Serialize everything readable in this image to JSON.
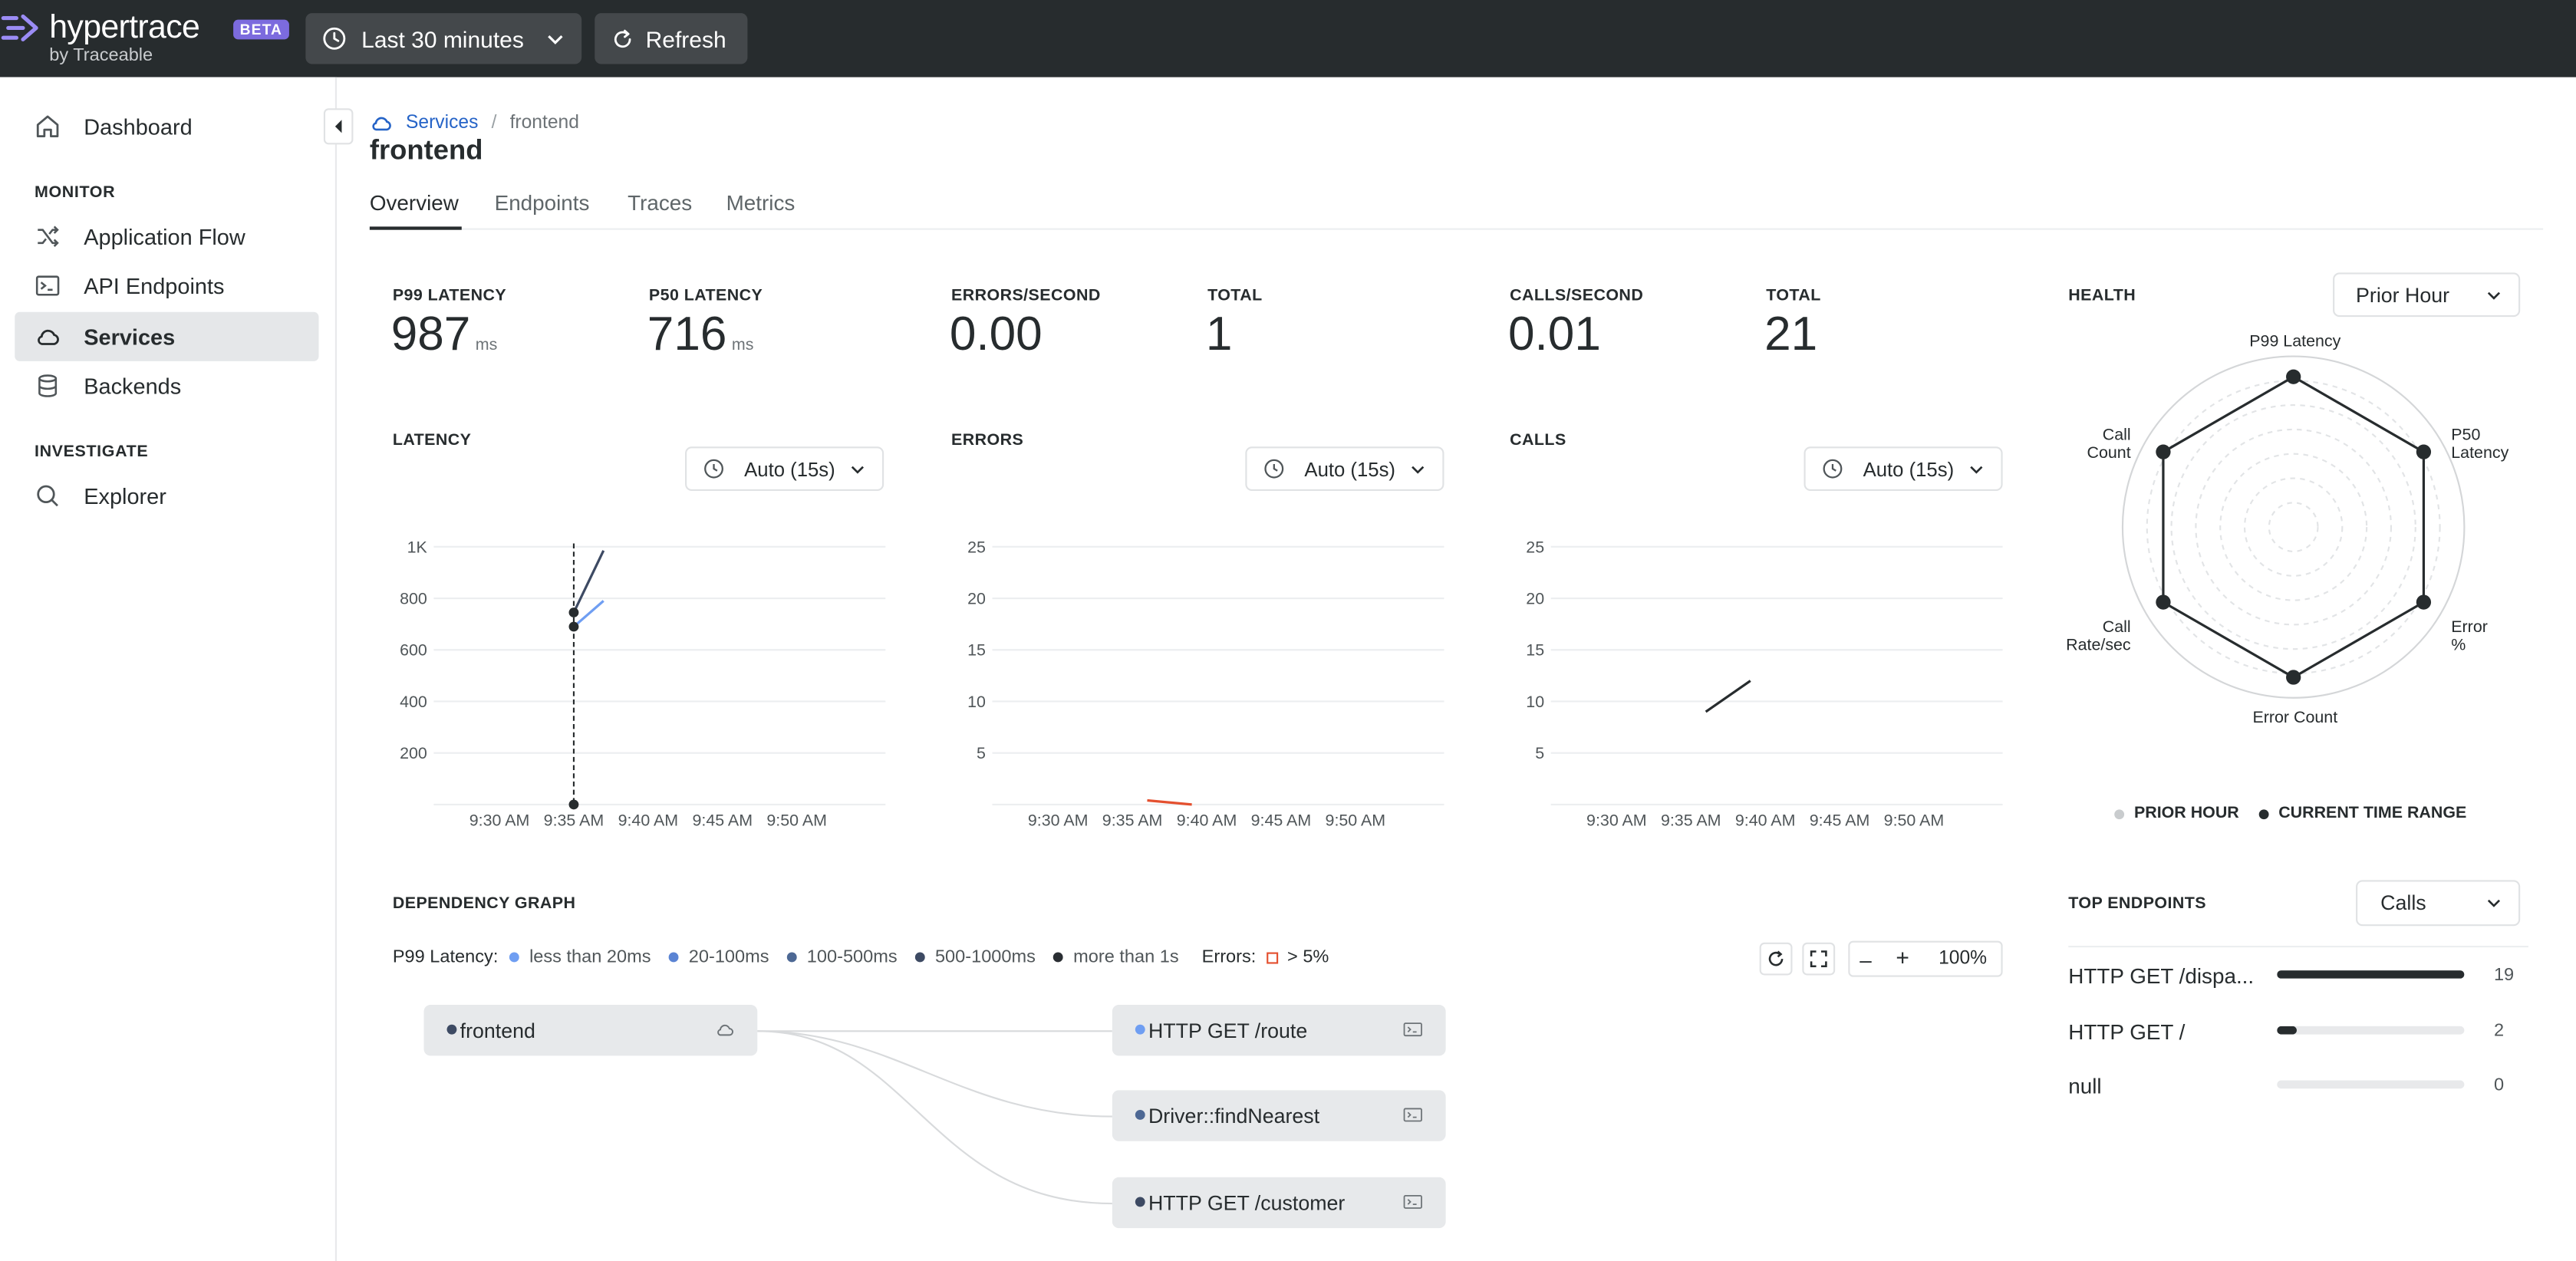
{
  "header": {
    "logo_text": "hypertrace",
    "logo_badge": "BETA",
    "logo_sub": "by Traceable",
    "time_range": "Last 30 minutes",
    "refresh": "Refresh"
  },
  "sidebar": {
    "dashboard": "Dashboard",
    "monitor_title": "MONITOR",
    "monitor_items": [
      "Application Flow",
      "API Endpoints",
      "Services",
      "Backends"
    ],
    "investigate_title": "INVESTIGATE",
    "investigate_items": [
      "Explorer"
    ],
    "active": "Services"
  },
  "breadcrumb": {
    "parent": "Services",
    "separator": "/",
    "current": "frontend"
  },
  "page_title": "frontend",
  "tabs": [
    "Overview",
    "Endpoints",
    "Traces",
    "Metrics"
  ],
  "latency": {
    "p99_label": "P99 LATENCY",
    "p99_value": "987",
    "p99_unit": "ms",
    "p50_label": "P50 LATENCY",
    "p50_value": "716",
    "p50_unit": "ms",
    "chart_title": "LATENCY",
    "interval": "Auto (15s)"
  },
  "errors": {
    "rate_label": "ERRORS/SECOND",
    "rate_value": "0.00",
    "total_label": "TOTAL",
    "total_value": "1",
    "chart_title": "ERRORS",
    "interval": "Auto (15s)"
  },
  "calls": {
    "rate_label": "CALLS/SECOND",
    "rate_value": "0.01",
    "total_label": "TOTAL",
    "total_value": "21",
    "chart_title": "CALLS",
    "interval": "Auto (15s)"
  },
  "health": {
    "title": "HEALTH",
    "compare": "Prior Hour",
    "axes": [
      "P99 Latency",
      "P50 Latency",
      "Error %",
      "Error Count",
      "Call Rate/sec",
      "Call Count"
    ],
    "legend_prior": "PRIOR HOUR",
    "legend_current": "CURRENT TIME RANGE"
  },
  "dependency_graph": {
    "title": "DEPENDENCY GRAPH",
    "legend_prefix": "P99 Latency:",
    "legend": [
      "less than 20ms",
      "20-100ms",
      "100-500ms",
      "500-1000ms",
      "more than 1s"
    ],
    "legend_colors": [
      "#6f9ef2",
      "#5b84d4",
      "#4d6894",
      "#3d4a63",
      "#2a2e33"
    ],
    "errors_label": "Errors:",
    "errors_value": "> 5%",
    "zoom": "100%",
    "source_node": "frontend",
    "target_nodes": [
      "HTTP GET /route",
      "Driver::findNearest",
      "HTTP GET /customer"
    ]
  },
  "top_endpoints": {
    "title": "TOP ENDPOINTS",
    "metric": "Calls",
    "items": [
      {
        "name": "HTTP GET /dispa...",
        "count": "19",
        "fraction": 1.0
      },
      {
        "name": "HTTP GET /",
        "count": "2",
        "fraction": 0.105
      },
      {
        "name": "null",
        "count": "0",
        "fraction": 0
      }
    ]
  },
  "chart_data": [
    {
      "type": "line",
      "title": "LATENCY",
      "x_ticks": [
        "9:30 AM",
        "9:35 AM",
        "9:40 AM",
        "9:45 AM",
        "9:50 AM"
      ],
      "y_ticks": [
        "1K",
        "800",
        "600",
        "400",
        "200"
      ],
      "ylim": [
        0,
        1000
      ],
      "series": [
        {
          "values": [
            {
              "x": "9:35 AM",
              "y": 745
            },
            {
              "x": "9:37 AM",
              "y": 985
            }
          ],
          "color": "#3d4a63"
        },
        {
          "values": [
            {
              "x": "9:35 AM",
              "y": 690
            },
            {
              "x": "9:37 AM",
              "y": 790
            }
          ],
          "color": "#6f9ef2"
        }
      ]
    },
    {
      "type": "line",
      "title": "ERRORS",
      "x_ticks": [
        "9:30 AM",
        "9:35 AM",
        "9:40 AM",
        "9:45 AM",
        "9:50 AM"
      ],
      "y_ticks": [
        "25",
        "20",
        "15",
        "10",
        "5"
      ],
      "ylim": [
        0,
        25
      ],
      "series": [
        {
          "values": [
            {
              "x": "9:36 AM",
              "y": 0.4
            },
            {
              "x": "9:39 AM",
              "y": 0
            }
          ],
          "color": "#e4502f"
        }
      ]
    },
    {
      "type": "line",
      "title": "CALLS",
      "x_ticks": [
        "9:30 AM",
        "9:35 AM",
        "9:40 AM",
        "9:45 AM",
        "9:50 AM"
      ],
      "y_ticks": [
        "25",
        "20",
        "15",
        "10",
        "5"
      ],
      "ylim": [
        0,
        25
      ],
      "series": [
        {
          "values": [
            {
              "x": "9:36 AM",
              "y": 9
            },
            {
              "x": "9:39 AM",
              "y": 12
            }
          ],
          "color": "#272c2e"
        }
      ]
    },
    {
      "type": "radar",
      "title": "HEALTH",
      "axes": [
        "P99 Latency",
        "P50 Latency",
        "Error %",
        "Error Count",
        "Call Rate/sec",
        "Call Count"
      ],
      "series": [
        {
          "name": "CURRENT TIME RANGE",
          "values": [
            0.88,
            0.88,
            0.88,
            0.88,
            0.88,
            0.88
          ]
        }
      ]
    }
  ]
}
